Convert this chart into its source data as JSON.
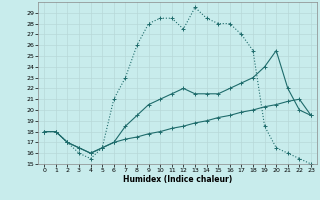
{
  "xlabel": "Humidex (Indice chaleur)",
  "background_color": "#c8ecec",
  "grid_color": "#b8d8d8",
  "line_color": "#1e6b6b",
  "xlim": [
    -0.5,
    23.5
  ],
  "ylim": [
    15,
    30
  ],
  "yticks": [
    15,
    16,
    17,
    18,
    19,
    20,
    21,
    22,
    23,
    24,
    25,
    26,
    27,
    28,
    29
  ],
  "xticks": [
    0,
    1,
    2,
    3,
    4,
    5,
    6,
    7,
    8,
    9,
    10,
    11,
    12,
    13,
    14,
    15,
    16,
    17,
    18,
    19,
    20,
    21,
    22,
    23
  ],
  "curve_top_x": [
    0,
    1,
    2,
    3,
    4,
    5,
    6,
    7,
    8,
    9,
    10,
    11,
    12,
    13,
    14,
    15,
    16,
    17,
    18,
    19,
    20,
    21,
    22,
    23
  ],
  "curve_top_y": [
    18.0,
    18.0,
    17.0,
    16.0,
    15.5,
    16.5,
    21.0,
    23.0,
    26.0,
    28.0,
    28.5,
    28.5,
    27.5,
    29.5,
    28.5,
    28.0,
    28.0,
    27.0,
    25.5,
    18.5,
    16.5,
    16.0,
    15.5,
    15.0
  ],
  "curve_mid_x": [
    0,
    1,
    2,
    3,
    4,
    5,
    6,
    7,
    8,
    9,
    10,
    11,
    12,
    13,
    14,
    15,
    16,
    17,
    18,
    19,
    20,
    21,
    22,
    23
  ],
  "curve_mid_y": [
    18.0,
    18.0,
    17.0,
    16.5,
    16.0,
    16.5,
    17.0,
    18.5,
    19.5,
    20.5,
    21.0,
    21.5,
    22.0,
    21.5,
    21.5,
    21.5,
    22.0,
    22.5,
    23.0,
    24.0,
    25.5,
    22.0,
    20.0,
    19.5
  ],
  "curve_bot_x": [
    0,
    1,
    2,
    3,
    4,
    5,
    6,
    7,
    8,
    9,
    10,
    11,
    12,
    13,
    14,
    15,
    16,
    17,
    18,
    19,
    20,
    21,
    22,
    23
  ],
  "curve_bot_y": [
    18.0,
    18.0,
    17.0,
    16.5,
    16.0,
    16.5,
    17.0,
    17.3,
    17.5,
    17.8,
    18.0,
    18.3,
    18.5,
    18.8,
    19.0,
    19.3,
    19.5,
    19.8,
    20.0,
    20.3,
    20.5,
    20.8,
    21.0,
    19.5
  ]
}
